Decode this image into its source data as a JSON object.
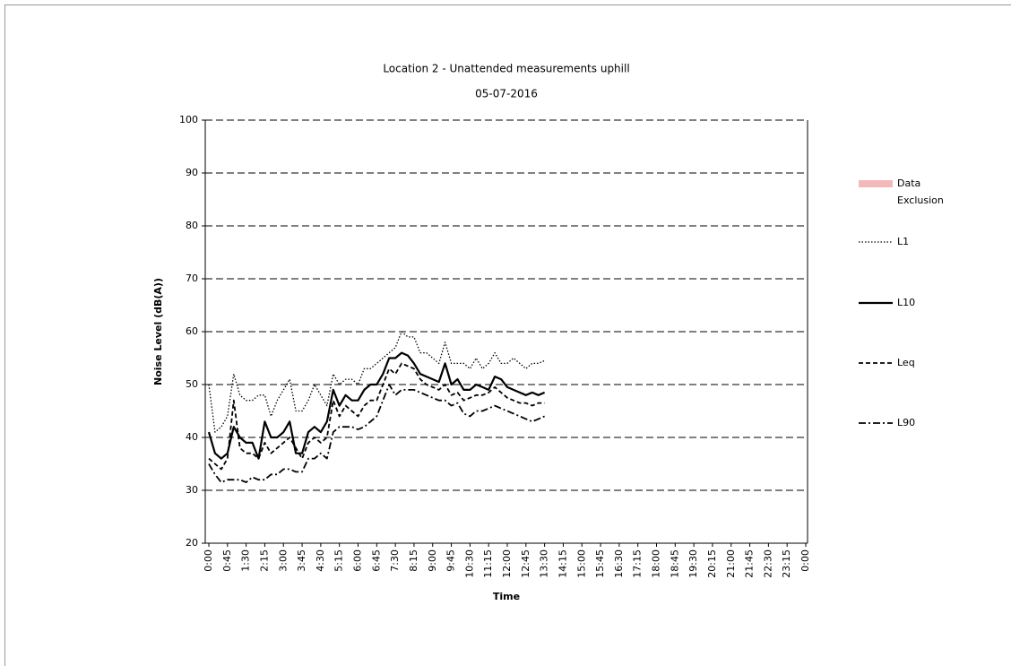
{
  "chart_data": {
    "type": "line",
    "title": "Location 2 - Unattended measurements uphill",
    "subtitle": "05-07-2016",
    "y_label": "Noise Level (dB(A))",
    "x_label": "Time",
    "categories": [
      "0:00",
      null,
      null,
      "0:45",
      null,
      null,
      "1:30",
      null,
      null,
      "2:15",
      null,
      null,
      "3:00",
      null,
      null,
      "3:45",
      null,
      null,
      "4:30",
      null,
      null,
      "5:15",
      null,
      null,
      "6:00",
      null,
      null,
      "6:45",
      null,
      null,
      "7:30",
      null,
      null,
      "8:15",
      null,
      null,
      "9:00",
      null,
      null,
      "9:45",
      null,
      null,
      "10:30",
      null,
      null,
      "11:15",
      null,
      null,
      "12:00",
      null,
      null,
      "12:45",
      null,
      null,
      "13:30",
      null,
      null,
      "14:15",
      null,
      null,
      "15:00",
      null,
      null,
      "15:45",
      null,
      null,
      "16:30",
      null,
      null,
      "17:15",
      null,
      null,
      "18:00",
      null,
      null,
      "18:45",
      null,
      null,
      "19:30",
      null,
      null,
      "20:15",
      null,
      null,
      "21:00",
      null,
      null,
      "21:45",
      null,
      null,
      "22:30",
      null,
      null,
      "23:15",
      null,
      null,
      "0:00"
    ],
    "series": [
      {
        "name": "Data Exclusion",
        "color": "#f4b8b8",
        "line_style": "band",
        "values": [
          null,
          null,
          null,
          null,
          null,
          null,
          null,
          null,
          null,
          null,
          null,
          null,
          null,
          null,
          null,
          null,
          null,
          null,
          null,
          null,
          null,
          null,
          null,
          null,
          null,
          null,
          null,
          null,
          null,
          null,
          null,
          null,
          null,
          null,
          null,
          null,
          null,
          null,
          null,
          null,
          null,
          null,
          null,
          null,
          null,
          null,
          null,
          null,
          null,
          null,
          null,
          null,
          null,
          null,
          null,
          null,
          null,
          null,
          null,
          null,
          null,
          null,
          null,
          null,
          null,
          null,
          null,
          null,
          null,
          null,
          null,
          null,
          null,
          null,
          null,
          null,
          null,
          null,
          null,
          null,
          null,
          null,
          null,
          null,
          null,
          null,
          null,
          null,
          null,
          null,
          null,
          null,
          null,
          null,
          null,
          null,
          null
        ]
      },
      {
        "name": "L1",
        "color": "#000000",
        "line_style": "dotted",
        "values": [
          50,
          41,
          42,
          44,
          52,
          48,
          47,
          47,
          48,
          48,
          44,
          47,
          49,
          51,
          45,
          45,
          47,
          50,
          48,
          46,
          52,
          50,
          51,
          51,
          50,
          53,
          53,
          54,
          55,
          56,
          57,
          60,
          59,
          59,
          56,
          56,
          55,
          54,
          58,
          54,
          54,
          54,
          53,
          55,
          53,
          54,
          56,
          54,
          54,
          55,
          54,
          53,
          54,
          54,
          54.5,
          null,
          null,
          null,
          null,
          null,
          null,
          null,
          null,
          null,
          null,
          null,
          null,
          null,
          null,
          null,
          null,
          null,
          null,
          null,
          null,
          null,
          null,
          null,
          null,
          null,
          null,
          null,
          null,
          null,
          null,
          null,
          null,
          null,
          null,
          null,
          null,
          null,
          null,
          null,
          null,
          null,
          null
        ]
      },
      {
        "name": "L10",
        "color": "#000000",
        "line_style": "solid",
        "values": [
          41,
          37,
          36,
          37,
          42,
          40,
          39,
          39,
          36,
          43,
          40,
          40,
          41,
          43,
          37,
          37,
          41,
          42,
          41,
          43,
          49,
          46,
          48,
          47,
          47,
          49,
          50,
          50,
          52,
          55,
          55,
          56,
          55.5,
          54,
          52,
          51.5,
          51,
          50.5,
          54,
          50,
          51,
          49,
          49,
          50,
          49.5,
          49,
          51.5,
          51,
          49.5,
          49,
          48.5,
          48,
          48.5,
          48,
          48.5,
          null,
          null,
          null,
          null,
          null,
          null,
          null,
          null,
          null,
          null,
          null,
          null,
          null,
          null,
          null,
          null,
          null,
          null,
          null,
          null,
          null,
          null,
          null,
          null,
          null,
          null,
          null,
          null,
          null,
          null,
          null,
          null,
          null,
          null,
          null,
          null,
          null,
          null,
          null,
          null,
          null,
          null
        ]
      },
      {
        "name": "Leq",
        "color": "#000000",
        "line_style": "dashed",
        "values": [
          36,
          35,
          34,
          36,
          47,
          38,
          37,
          37,
          36,
          39,
          37,
          38,
          39,
          40,
          38,
          36,
          39,
          40,
          39,
          40,
          47,
          44,
          46,
          45,
          44,
          46,
          47,
          47,
          50,
          53,
          52,
          54,
          53.5,
          53,
          51,
          50,
          49.5,
          49,
          50,
          48,
          48.5,
          47,
          47.5,
          48,
          48,
          48.5,
          49.5,
          48.5,
          47.5,
          47,
          46.5,
          46.5,
          46,
          46.5,
          46.5,
          null,
          null,
          null,
          null,
          null,
          null,
          null,
          null,
          null,
          null,
          null,
          null,
          null,
          null,
          null,
          null,
          null,
          null,
          null,
          null,
          null,
          null,
          null,
          null,
          null,
          null,
          null,
          null,
          null,
          null,
          null,
          null,
          null,
          null,
          null,
          null,
          null,
          null,
          null,
          null,
          null,
          null
        ]
      },
      {
        "name": "L90",
        "color": "#000000",
        "line_style": "dashdot",
        "values": [
          35,
          33,
          31.5,
          32,
          32,
          32,
          31.5,
          32.5,
          32,
          32,
          33,
          33,
          34,
          34,
          33.5,
          33.5,
          36,
          36,
          37,
          36,
          41,
          42,
          42,
          42,
          41.5,
          42,
          43,
          44,
          47,
          50,
          48,
          49,
          49,
          49,
          48.5,
          48,
          47.5,
          47,
          47,
          46,
          46.5,
          44.5,
          44,
          45,
          45,
          45.5,
          46,
          45.5,
          45,
          44.5,
          44,
          43.5,
          43,
          43.5,
          44,
          null,
          null,
          null,
          null,
          null,
          null,
          null,
          null,
          null,
          null,
          null,
          null,
          null,
          null,
          null,
          null,
          null,
          null,
          null,
          null,
          null,
          null,
          null,
          null,
          null,
          null,
          null,
          null,
          null,
          null,
          null,
          null,
          null,
          null,
          null,
          null,
          null,
          null,
          null,
          null,
          null,
          null
        ]
      }
    ],
    "ylim": [
      20,
      100
    ],
    "yticks": [
      20,
      30,
      40,
      50,
      60,
      70,
      80,
      90,
      100
    ],
    "grid": true,
    "legend": "right"
  }
}
